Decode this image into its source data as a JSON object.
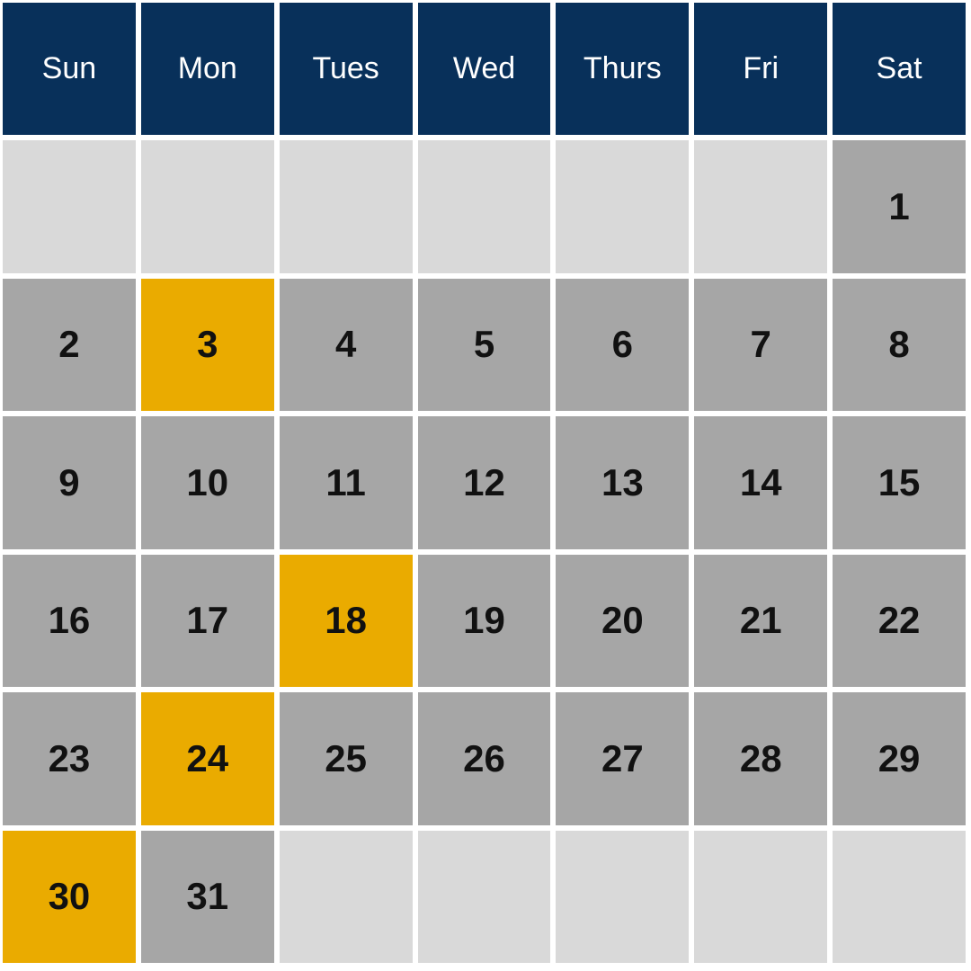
{
  "calendar": {
    "weekday_header": {
      "labels": [
        "Sun",
        "Mon",
        "Tues",
        "Wed",
        "Thurs",
        "Fri",
        "Sat"
      ]
    },
    "weeks": [
      {
        "days": [
          {
            "label": "",
            "type": "blank"
          },
          {
            "label": "",
            "type": "blank"
          },
          {
            "label": "",
            "type": "blank"
          },
          {
            "label": "",
            "type": "blank"
          },
          {
            "label": "",
            "type": "blank"
          },
          {
            "label": "",
            "type": "blank"
          },
          {
            "label": "1",
            "type": "day"
          }
        ]
      },
      {
        "days": [
          {
            "label": "2",
            "type": "day"
          },
          {
            "label": "3",
            "type": "highlight"
          },
          {
            "label": "4",
            "type": "day"
          },
          {
            "label": "5",
            "type": "day"
          },
          {
            "label": "6",
            "type": "day"
          },
          {
            "label": "7",
            "type": "day"
          },
          {
            "label": "8",
            "type": "day"
          }
        ]
      },
      {
        "days": [
          {
            "label": "9",
            "type": "day"
          },
          {
            "label": "10",
            "type": "day"
          },
          {
            "label": "11",
            "type": "day"
          },
          {
            "label": "12",
            "type": "day"
          },
          {
            "label": "13",
            "type": "day"
          },
          {
            "label": "14",
            "type": "day"
          },
          {
            "label": "15",
            "type": "day"
          }
        ]
      },
      {
        "days": [
          {
            "label": "16",
            "type": "day"
          },
          {
            "label": "17",
            "type": "day"
          },
          {
            "label": "18",
            "type": "highlight"
          },
          {
            "label": "19",
            "type": "day"
          },
          {
            "label": "20",
            "type": "day"
          },
          {
            "label": "21",
            "type": "day"
          },
          {
            "label": "22",
            "type": "day"
          }
        ]
      },
      {
        "days": [
          {
            "label": "23",
            "type": "day"
          },
          {
            "label": "24",
            "type": "highlight"
          },
          {
            "label": "25",
            "type": "day"
          },
          {
            "label": "26",
            "type": "day"
          },
          {
            "label": "27",
            "type": "day"
          },
          {
            "label": "28",
            "type": "day"
          },
          {
            "label": "29",
            "type": "day"
          }
        ]
      },
      {
        "days": [
          {
            "label": "30",
            "type": "highlight"
          },
          {
            "label": "31",
            "type": "day"
          },
          {
            "label": "",
            "type": "blank"
          },
          {
            "label": "",
            "type": "blank"
          },
          {
            "label": "",
            "type": "blank"
          },
          {
            "label": "",
            "type": "blank"
          },
          {
            "label": "",
            "type": "blank"
          }
        ]
      }
    ],
    "highlighted_dates": [
      "3",
      "18",
      "24",
      "30"
    ],
    "colors": {
      "header_bg": "#08305a",
      "header_text": "#ffffff",
      "day_bg": "#a6a6a6",
      "blank_bg": "#d9d9d9",
      "highlight_bg": "#eaab00",
      "day_text": "#111111",
      "grid_gap": "#ffffff"
    }
  }
}
